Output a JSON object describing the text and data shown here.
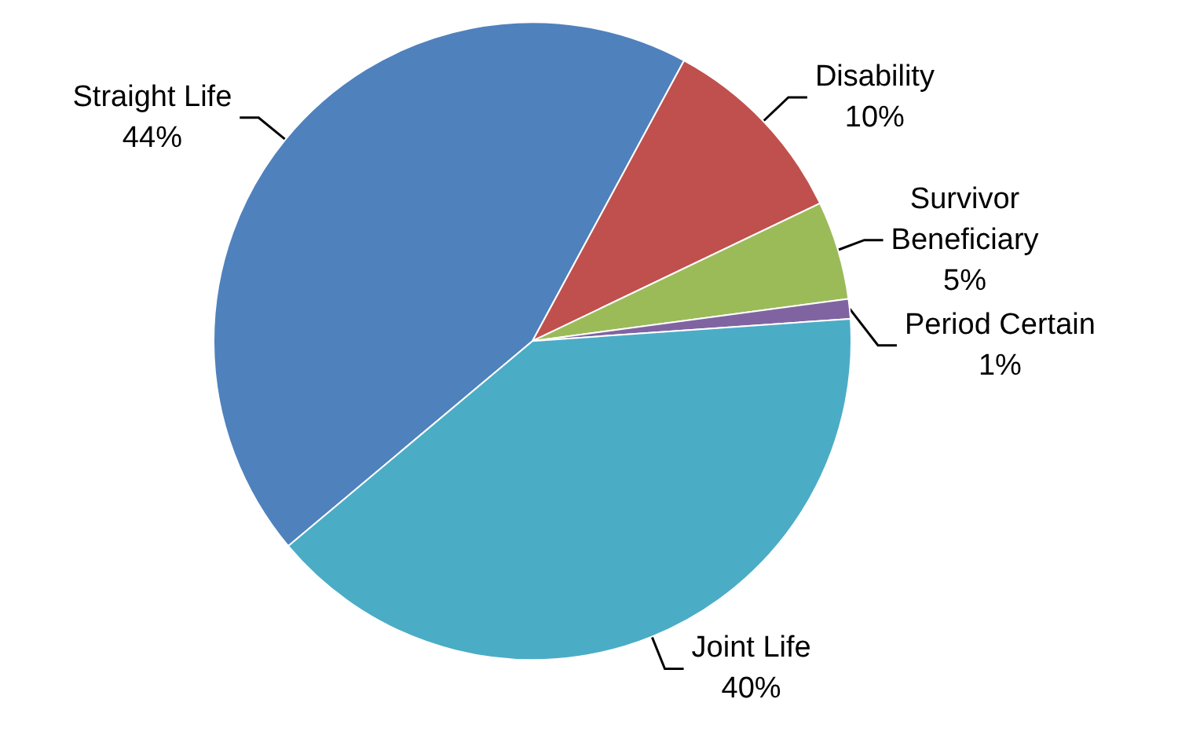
{
  "chart_data": {
    "type": "pie",
    "categories": [
      "Straight Life",
      "Disability",
      "Survivor Beneficiary",
      "Period Certain",
      "Joint Life"
    ],
    "values": [
      44,
      10,
      5,
      1,
      40
    ],
    "value_labels": [
      "44%",
      "10%",
      "5%",
      "1%",
      "40%"
    ],
    "colors": [
      "#4f81bd",
      "#c0504d",
      "#9bbb59",
      "#8064a2",
      "#4bacc6"
    ]
  }
}
